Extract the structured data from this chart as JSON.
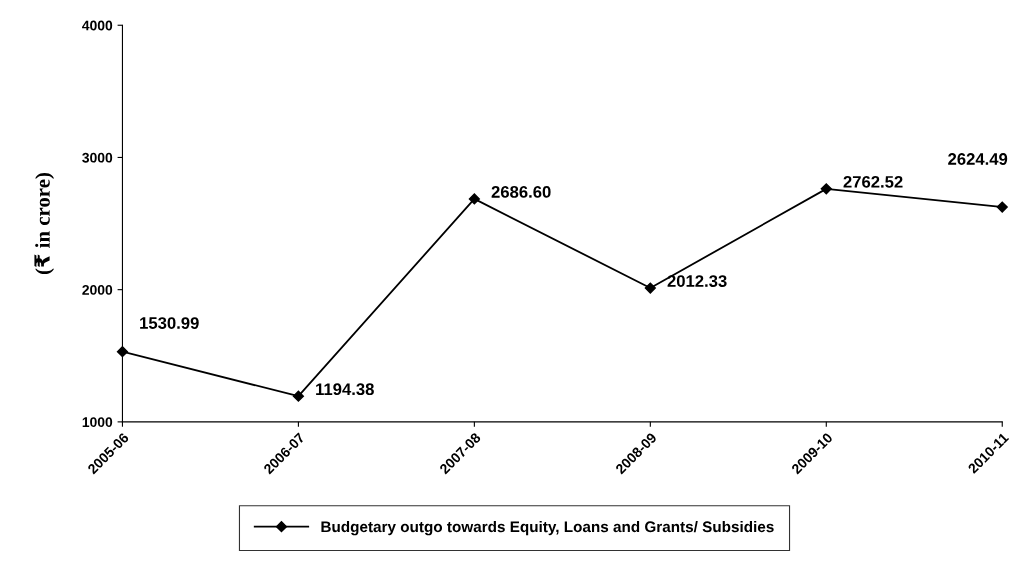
{
  "chart_data": {
    "type": "line",
    "ylabel": "(₹ in crore)",
    "categories": [
      "2005-06",
      "2006-07",
      "2007-08",
      "2008-09",
      "2009-10",
      "2010-11"
    ],
    "series": [
      {
        "name": "Budgetary outgo towards Equity, Loans and Grants/ Subsidies",
        "color": "#000000",
        "values": [
          1530.99,
          1194.38,
          2686.6,
          2012.33,
          2762.52,
          2624.49
        ],
        "value_labels": [
          "1530.99",
          "1194.38",
          "2686.60",
          "2012.33",
          "2762.52",
          "2624.49"
        ]
      }
    ],
    "ylim": [
      1000,
      4000
    ],
    "yticks": [
      1000,
      2000,
      3000,
      4000
    ],
    "grid": false,
    "legend": "bottom",
    "marker": "diamond",
    "line_style": "solid"
  }
}
